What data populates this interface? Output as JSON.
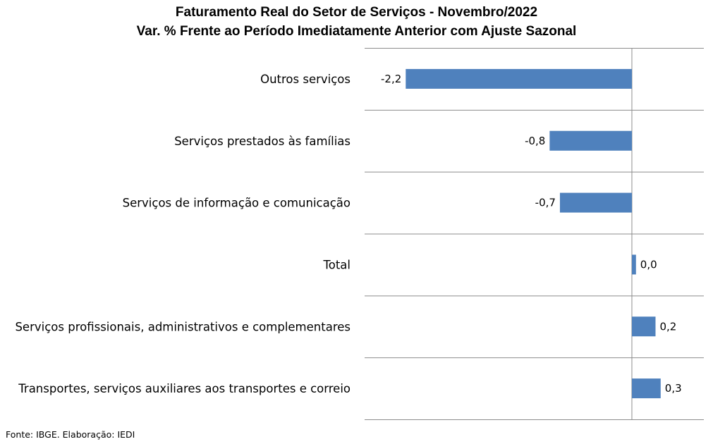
{
  "chart_data": {
    "type": "bar",
    "orientation": "horizontal",
    "title": "Faturamento Real do Setor de Serviços - Novembro/2022",
    "subtitle": "Var. % Frente ao Período Imediatamente Anterior com Ajuste Sazonal",
    "categories": [
      "Outros serviços",
      "Serviços prestados às famílias",
      "Serviços de informação e comunicação",
      "Total",
      "Serviços profissionais, administrativos e complementares",
      "Transportes, serviços auxiliares aos transportes e correio"
    ],
    "values": [
      -2.2,
      -0.8,
      -0.7,
      0.04,
      0.23,
      0.28
    ],
    "value_labels": [
      "-2,2",
      "-0,8",
      "-0,7",
      "0,0",
      "0,2",
      "0,3"
    ],
    "xlim": [
      -2.6,
      0.7
    ],
    "bar_color": "#4F81BD",
    "grid": true,
    "legend": "none"
  },
  "source": "Fonte: IBGE. Elaboração: IEDI"
}
